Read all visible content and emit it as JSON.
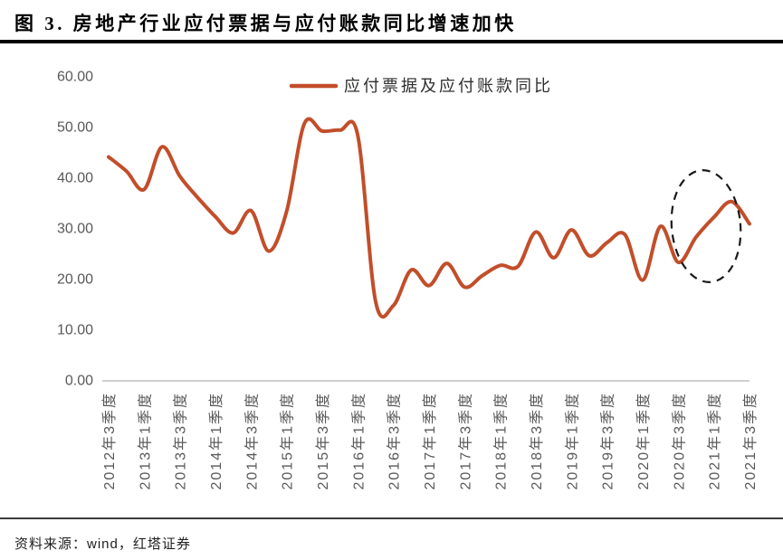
{
  "figure": {
    "title": "图 3. 房地产行业应付票据与应付账款同比增速加快",
    "source": "资料来源：wind，红塔证券"
  },
  "colors": {
    "line": "#c24e2a",
    "axis_text": "#595959",
    "baseline": "#bfbfbf",
    "annotation": "#1a1a1a"
  },
  "chart_data": {
    "type": "line",
    "title": "图 3. 房地产行业应付票据与应付账款同比增速加快",
    "legend": [
      "应付票据及应付账款同比"
    ],
    "legend_position": "top-center",
    "grid": false,
    "ylim": [
      0,
      60
    ],
    "y_ticks": [
      "60.00",
      "50.00",
      "40.00",
      "30.00",
      "20.00",
      "10.00",
      "0.00"
    ],
    "x_tick_labels": [
      "2012年3季度",
      "2013年1季度",
      "2013年3季度",
      "2014年1季度",
      "2014年3季度",
      "2015年1季度",
      "2015年3季度",
      "2016年1季度",
      "2016年3季度",
      "2017年1季度",
      "2017年3季度",
      "2018年1季度",
      "2018年3季度",
      "2019年1季度",
      "2019年3季度",
      "2020年1季度",
      "2020年3季度",
      "2021年1季度",
      "2021年3季度"
    ],
    "x": [
      "2012年3季度",
      "2012年4季度",
      "2013年1季度",
      "2013年2季度",
      "2013年3季度",
      "2013年4季度",
      "2014年1季度",
      "2014年2季度",
      "2014年3季度",
      "2014年4季度",
      "2015年1季度",
      "2015年2季度",
      "2015年3季度",
      "2015年4季度",
      "2016年1季度",
      "2016年2季度",
      "2016年3季度",
      "2016年4季度",
      "2017年1季度",
      "2017年2季度",
      "2017年3季度",
      "2017年4季度",
      "2018年1季度",
      "2018年2季度",
      "2018年3季度",
      "2018年4季度",
      "2019年1季度",
      "2019年2季度",
      "2019年3季度",
      "2019年4季度",
      "2020年1季度",
      "2020年2季度",
      "2020年3季度",
      "2020年4季度",
      "2021年1季度",
      "2021年2季度",
      "2021年3季度"
    ],
    "series": [
      {
        "name": "应付票据及应付账款同比",
        "values": [
          44.2,
          41.4,
          37.8,
          46.2,
          40.4,
          36.2,
          32.4,
          29.2,
          33.6,
          25.6,
          33.5,
          50.8,
          49.3,
          49.5,
          48.4,
          15.6,
          14.9,
          21.9,
          18.8,
          23.2,
          18.5,
          20.8,
          22.8,
          22.6,
          29.4,
          24.3,
          29.8,
          24.7,
          27.3,
          28.9,
          19.9,
          30.5,
          23.4,
          28.4,
          32.3,
          35.4,
          31.0
        ]
      }
    ],
    "annotation": {
      "shape": "dashed-ellipse",
      "around": "2020年3季度至2021年3季度上行段"
    }
  }
}
